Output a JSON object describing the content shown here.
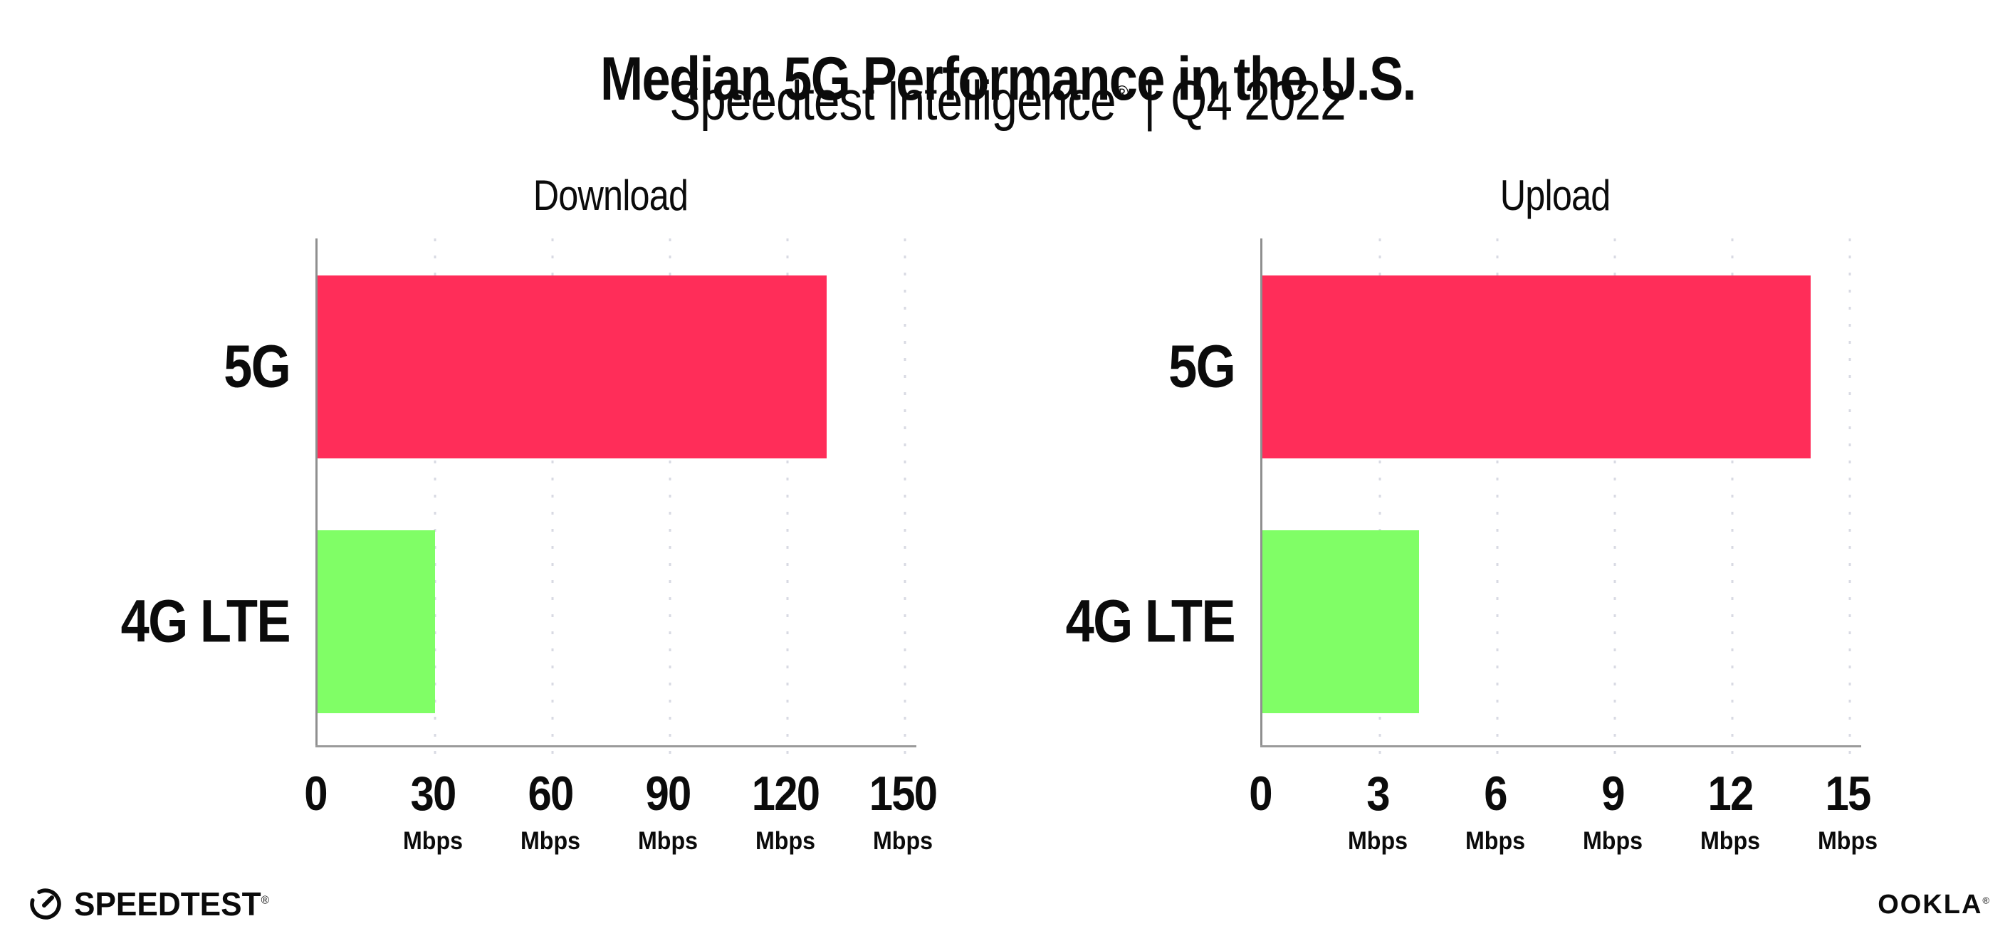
{
  "header": {
    "title": "Median 5G Performance in the U.S.",
    "subtitle": {
      "product": "Speedtest Intelligence",
      "registered_mark": "®",
      "separator": "|",
      "period": "Q4 2022"
    }
  },
  "chart_data": [
    {
      "type": "bar",
      "orientation": "horizontal",
      "title": "Download",
      "categories": [
        "5G",
        "4G LTE"
      ],
      "values": [
        130,
        30
      ],
      "unit": "Mbps",
      "xlabel": "Mbps",
      "xlim": [
        0,
        150
      ],
      "ticks": [
        0,
        30,
        60,
        90,
        120,
        150
      ],
      "colors": [
        "#ff2d59",
        "#80fe66"
      ],
      "grid": "dotted-vertical-gridlines",
      "legend": "none"
    },
    {
      "type": "bar",
      "orientation": "horizontal",
      "title": "Upload",
      "categories": [
        "5G",
        "4G LTE"
      ],
      "values": [
        14,
        4
      ],
      "unit": "Mbps",
      "xlabel": "Mbps",
      "xlim": [
        0,
        15
      ],
      "ticks": [
        0,
        3,
        6,
        9,
        12,
        15
      ],
      "colors": [
        "#ff2d59",
        "#80fe66"
      ],
      "grid": "dotted-vertical-gridlines",
      "legend": "none"
    }
  ],
  "footer": {
    "speedtest_wordmark": "SPEEDTEST",
    "speedtest_mark": "®",
    "ookla_wordmark": "OOKLA",
    "ookla_mark": "®"
  },
  "style": {
    "bar_5g_color": "#ff2d59",
    "bar_4g_color": "#80fe66",
    "axis_color": "#9a9a9a",
    "gridline_color": "#d8dae3",
    "text_color": "#0b0b0b",
    "background": "#ffffff"
  }
}
